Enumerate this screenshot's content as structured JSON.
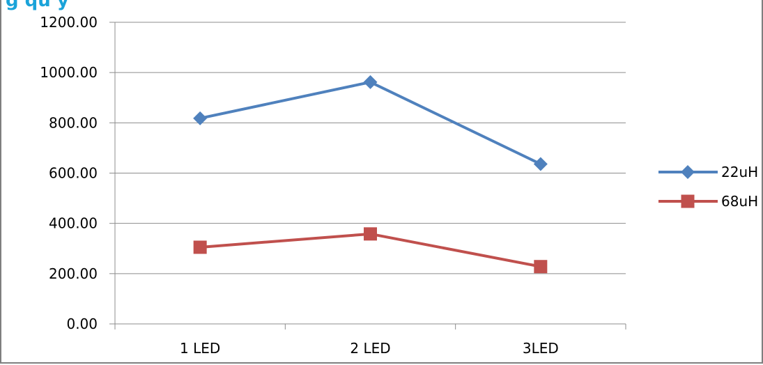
{
  "title_fragment": "g  qu   y",
  "chart_data": {
    "type": "line",
    "categories": [
      "1 LED",
      "2 LED",
      "3LED"
    ],
    "series": [
      {
        "name": "22uH",
        "values": [
          818,
          962,
          636
        ],
        "color": "#4f81bd",
        "marker": "diamond"
      },
      {
        "name": "68uH",
        "values": [
          305,
          358,
          228
        ],
        "color": "#c0504d",
        "marker": "square"
      }
    ],
    "yticks": [
      "0.00",
      "200.00",
      "400.00",
      "600.00",
      "800.00",
      "1000.00",
      "1200.00"
    ],
    "ylim": [
      0,
      1200
    ],
    "grid": true,
    "legend": "right"
  }
}
